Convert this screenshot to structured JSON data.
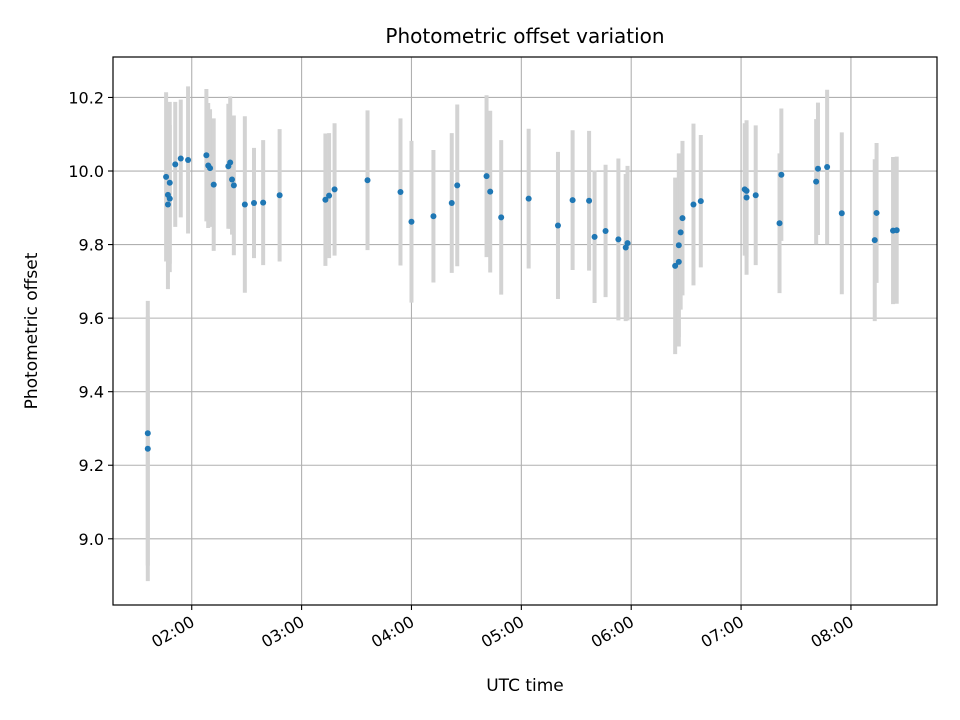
{
  "chart_data": {
    "type": "scatter",
    "title": "Photometric offset variation",
    "xlabel": "UTC time",
    "ylabel": "Photometric offset",
    "x_is_time": true,
    "xlim": [
      "01:17",
      "08:47"
    ],
    "ylim": [
      8.82,
      10.31
    ],
    "xticks": [
      "02:00",
      "03:00",
      "04:00",
      "05:00",
      "06:00",
      "07:00",
      "08:00"
    ],
    "yticks": [
      "9.0",
      "9.2",
      "9.4",
      "9.6",
      "9.8",
      "10.0",
      "10.2"
    ],
    "grid": true,
    "colors": {
      "point": "#1f77b4",
      "errorbar": "#d3d3d3",
      "grid": "#b0b0b0",
      "axes": "#000000"
    },
    "series": [
      {
        "x": [
          "01:36",
          "01:36",
          "01:46",
          "01:47",
          "01:47",
          "01:48",
          "01:48",
          "01:51",
          "01:54",
          "01:58",
          "02:08",
          "02:09",
          "02:10",
          "02:12",
          "02:20",
          "02:21",
          "02:22",
          "02:23",
          "02:29",
          "02:34",
          "02:39",
          "02:48",
          "03:13",
          "03:15",
          "03:18",
          "03:36",
          "03:54",
          "04:00",
          "04:12",
          "04:22",
          "04:25",
          "04:41",
          "04:43",
          "04:49",
          "05:04",
          "05:20",
          "05:28",
          "05:37",
          "05:40",
          "05:46",
          "05:53",
          "05:57",
          "05:58",
          "06:24",
          "06:26",
          "06:26",
          "06:27",
          "06:28",
          "06:34",
          "06:38",
          "07:02",
          "07:03",
          "07:03",
          "07:08",
          "07:21",
          "07:22",
          "07:41",
          "07:42",
          "07:47",
          "07:55",
          "08:13",
          "08:14",
          "08:23",
          "08:25"
        ],
        "y": [
          9.245,
          9.287,
          9.984,
          9.909,
          9.935,
          9.925,
          9.968,
          10.018,
          10.034,
          10.03,
          10.043,
          10.015,
          10.008,
          9.963,
          10.013,
          10.023,
          9.977,
          9.961,
          9.909,
          9.913,
          9.914,
          9.934,
          9.922,
          9.933,
          9.95,
          9.975,
          9.943,
          9.862,
          9.877,
          9.913,
          9.961,
          9.986,
          9.944,
          9.874,
          9.925,
          9.852,
          9.921,
          9.919,
          9.821,
          9.837,
          9.814,
          9.792,
          9.804,
          9.742,
          9.753,
          9.798,
          9.833,
          9.872,
          9.909,
          9.918,
          9.95,
          9.946,
          9.928,
          9.934,
          9.858,
          9.99,
          9.971,
          10.006,
          10.011,
          9.885,
          9.812,
          9.886,
          9.838,
          9.839
        ],
        "yerr": [
          0.36,
          0.36,
          0.23,
          0.23,
          0.18,
          0.2,
          0.22,
          0.17,
          0.16,
          0.2,
          0.18,
          0.17,
          0.16,
          0.18,
          0.17,
          0.18,
          0.15,
          0.19,
          0.24,
          0.15,
          0.17,
          0.18,
          0.18,
          0.17,
          0.18,
          0.19,
          0.2,
          0.22,
          0.18,
          0.19,
          0.22,
          0.22,
          0.22,
          0.21,
          0.19,
          0.2,
          0.19,
          0.19,
          0.18,
          0.18,
          0.22,
          0.2,
          0.21,
          0.24,
          0.23,
          0.25,
          0.21,
          0.21,
          0.22,
          0.18,
          0.18,
          0.18,
          0.21,
          0.19,
          0.19,
          0.18,
          0.17,
          0.18,
          0.21,
          0.22,
          0.22,
          0.19,
          0.2,
          0.2
        ]
      }
    ]
  }
}
